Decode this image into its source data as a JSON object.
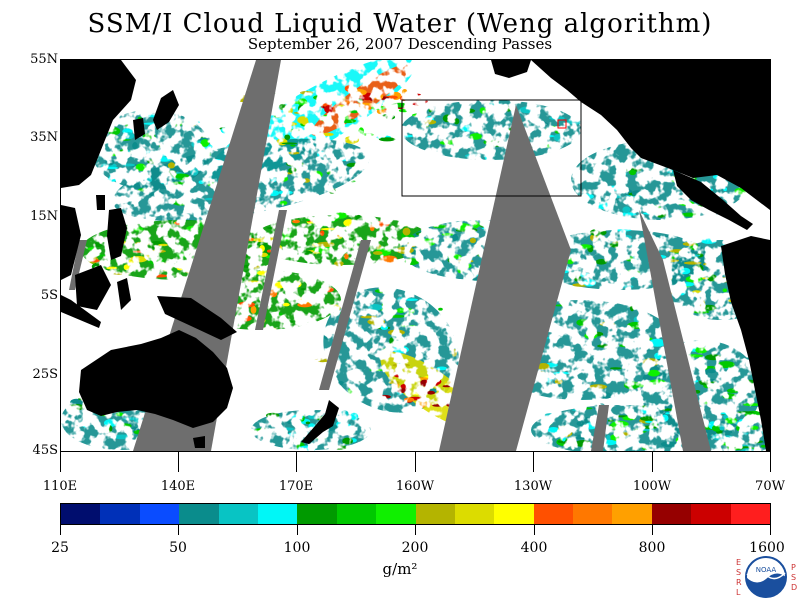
{
  "title": "SSM/I Cloud Liquid Water (Weng algorithm)",
  "subtitle": "September 26, 2007  Descending Passes",
  "map": {
    "lat_labels": [
      "55N",
      "35N",
      "15N",
      "5S",
      "25S",
      "45S"
    ],
    "lon_labels": [
      "110E",
      "140E",
      "170E",
      "160W",
      "130W",
      "100W",
      "70W"
    ],
    "colors": {
      "land": "#000000",
      "no_data_swath": "#6e6e6e",
      "clear_ocean": "#ffffff",
      "box_outline": "#000000"
    }
  },
  "colorbar": {
    "colors": [
      "#000d6e",
      "#0030b8",
      "#0a4cff",
      "#0a8c8c",
      "#08c4c4",
      "#00f7f7",
      "#009a00",
      "#00c800",
      "#10f000",
      "#b4b400",
      "#dcdc00",
      "#ffff00",
      "#ff5000",
      "#ff7800",
      "#ffa000",
      "#960000",
      "#cc0000",
      "#ff1e1e"
    ],
    "tick_labels": [
      "25",
      "50",
      "100",
      "200",
      "400",
      "800",
      "1600"
    ],
    "units": "g/m²"
  },
  "logo": {
    "left_letters": [
      "E",
      "S",
      "R",
      "L"
    ],
    "right_letters": [
      "P",
      "S",
      "D"
    ],
    "center_text": "NOAA"
  }
}
